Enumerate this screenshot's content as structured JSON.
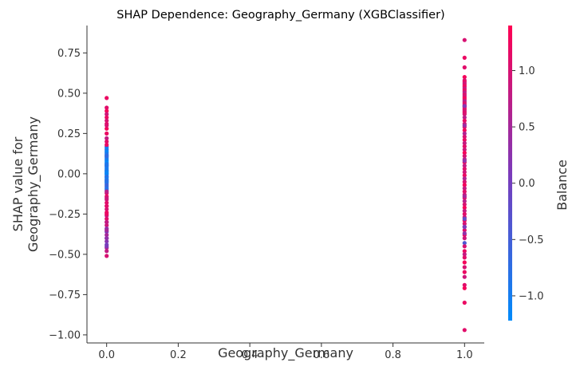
{
  "chart_data": {
    "type": "scatter",
    "title": "SHAP Dependence: Geography_Germany (XGBClassifier)",
    "xlabel": "Geography_Germany",
    "ylabel": "SHAP value for\nGeography_Germany",
    "xlim": [
      -0.055,
      1.055
    ],
    "ylim": [
      -1.05,
      0.92
    ],
    "xticks": [
      "0.0",
      "0.2",
      "0.4",
      "0.6",
      "0.8",
      "1.0"
    ],
    "yticks": [
      "−1.00",
      "−0.75",
      "−0.50",
      "−0.25",
      "0.00",
      "0.25",
      "0.50",
      "0.75"
    ],
    "colorbar": {
      "label": "Balance",
      "range": [
        -1.22,
        1.4
      ],
      "ticks": [
        "−1.0",
        "−0.5",
        "0.0",
        "0.5",
        "1.0"
      ],
      "low_color": "#008bfb",
      "mid_color": "#7c3aba",
      "high_color": "#ff0052"
    },
    "grid": false,
    "series": [
      {
        "x": [
          0,
          0,
          0,
          0,
          0,
          0,
          0,
          0,
          0,
          0,
          0,
          0,
          0,
          0,
          0,
          0,
          0,
          0,
          0,
          0,
          0,
          0,
          0,
          0,
          0,
          0,
          0,
          0,
          0,
          0,
          0,
          0,
          0,
          0,
          0,
          0,
          0,
          0,
          0,
          0,
          0,
          0,
          0,
          0,
          0,
          0,
          0,
          0,
          0,
          0,
          0,
          0,
          0,
          0,
          0,
          0,
          0,
          0,
          0,
          0,
          0,
          0,
          0,
          0,
          0,
          0,
          0,
          0,
          0,
          0,
          0,
          0,
          0,
          0,
          0,
          0,
          0,
          0
        ],
        "y": [
          0.47,
          0.41,
          0.39,
          0.37,
          0.35,
          0.33,
          0.31,
          0.28,
          0.25,
          0.22,
          0.2,
          0.17,
          0.15,
          0.13,
          0.11,
          0.1,
          0.08,
          0.06,
          0.05,
          0.04,
          0.02,
          0.01,
          0.0,
          -0.01,
          -0.02,
          -0.04,
          -0.05,
          -0.06,
          -0.08,
          -0.1,
          -0.12,
          -0.14,
          -0.16,
          -0.18,
          -0.2,
          -0.22,
          -0.24,
          -0.26,
          -0.28,
          -0.3,
          -0.32,
          -0.34,
          -0.36,
          -0.38,
          -0.4,
          -0.42,
          -0.44,
          -0.46,
          -0.48,
          -0.51,
          0.14,
          0.12,
          0.09,
          0.07,
          0.05,
          0.03,
          0.02,
          0.0,
          -0.02,
          -0.03,
          -0.05,
          -0.07,
          -0.09,
          0.16,
          0.11,
          0.06,
          0.01,
          -0.04,
          -0.11,
          -0.15,
          -0.2,
          -0.25,
          -0.3,
          -0.35,
          -0.4,
          -0.45,
          0.3,
          0.18
        ],
        "color": [
          1.2,
          1.1,
          1.3,
          0.9,
          1.2,
          1.0,
          1.1,
          1.3,
          1.2,
          0.8,
          1.1,
          0.4,
          -0.3,
          -0.8,
          -1.0,
          -0.9,
          -1.1,
          -0.7,
          -0.9,
          -1.0,
          -0.8,
          -1.1,
          -0.9,
          -1.0,
          -0.6,
          -0.9,
          -1.1,
          -0.8,
          -0.5,
          -0.7,
          1.0,
          1.2,
          0.9,
          1.1,
          1.3,
          1.0,
          1.2,
          0.8,
          1.1,
          0.6,
          0.9,
          0.3,
          0.1,
          0.5,
          0.4,
          0.2,
          0.0,
          0.6,
          0.8,
          1.0,
          -1.1,
          -0.9,
          -1.0,
          -1.2,
          -0.8,
          -1.0,
          -0.9,
          -1.1,
          -0.7,
          -1.0,
          -0.9,
          -0.6,
          -0.8,
          -1.0,
          -0.7,
          -0.9,
          -1.1,
          -0.8,
          0.7,
          0.9,
          1.1,
          1.2,
          0.8,
          0.5,
          0.3,
          0.1,
          1.0,
          1.2
        ]
      },
      {
        "x": [
          1,
          1,
          1,
          1,
          1,
          1,
          1,
          1,
          1,
          1,
          1,
          1,
          1,
          1,
          1,
          1,
          1,
          1,
          1,
          1,
          1,
          1,
          1,
          1,
          1,
          1,
          1,
          1,
          1,
          1,
          1,
          1,
          1,
          1,
          1,
          1,
          1,
          1,
          1,
          1,
          1,
          1,
          1,
          1,
          1,
          1,
          1,
          1,
          1,
          1,
          1,
          1,
          1,
          1,
          1,
          1,
          1,
          1,
          1,
          1,
          1,
          1,
          1,
          1,
          1,
          1,
          1,
          1,
          1,
          1,
          1,
          1,
          1,
          1,
          1,
          1,
          1,
          1,
          1,
          1,
          1,
          1,
          1,
          1
        ],
        "y": [
          0.83,
          0.72,
          0.66,
          0.6,
          0.58,
          0.57,
          0.56,
          0.55,
          0.54,
          0.53,
          0.52,
          0.51,
          0.5,
          0.49,
          0.48,
          0.47,
          0.46,
          0.45,
          0.44,
          0.43,
          0.42,
          0.41,
          0.4,
          0.39,
          0.38,
          0.37,
          0.35,
          0.33,
          0.31,
          0.29,
          0.27,
          0.25,
          0.23,
          0.21,
          0.19,
          0.17,
          0.15,
          0.13,
          0.11,
          0.09,
          0.07,
          0.05,
          0.03,
          0.01,
          -0.01,
          -0.03,
          -0.05,
          -0.07,
          -0.09,
          -0.11,
          -0.13,
          -0.15,
          -0.17,
          -0.19,
          -0.21,
          -0.23,
          -0.25,
          -0.27,
          -0.29,
          -0.31,
          -0.33,
          -0.35,
          -0.38,
          -0.4,
          -0.43,
          -0.45,
          -0.48,
          -0.5,
          -0.52,
          -0.55,
          -0.58,
          -0.61,
          -0.64,
          -0.69,
          -0.71,
          -0.8,
          -0.97,
          0.42,
          0.3,
          0.08,
          -0.14,
          -0.28,
          -0.33,
          -0.37
        ],
        "color": [
          1.0,
          1.2,
          1.1,
          1.3,
          1.0,
          1.2,
          0.9,
          1.1,
          1.3,
          0.8,
          1.2,
          1.0,
          0.7,
          1.1,
          0.9,
          1.3,
          1.2,
          0.6,
          1.0,
          1.1,
          0.8,
          1.2,
          1.3,
          0.9,
          1.1,
          1.0,
          0.7,
          1.2,
          0.9,
          1.1,
          1.3,
          0.6,
          1.0,
          1.2,
          0.8,
          1.1,
          0.9,
          1.3,
          1.0,
          0.7,
          1.2,
          0.8,
          1.1,
          0.9,
          1.2,
          0.6,
          1.0,
          1.3,
          0.8,
          1.1,
          0.9,
          1.2,
          0.7,
          1.0,
          1.3,
          0.8,
          1.1,
          0.9,
          1.2,
          1.0,
          0.6,
          1.1,
          1.3,
          0.9,
          -0.4,
          1.0,
          1.2,
          0.8,
          1.1,
          1.3,
          1.0,
          1.2,
          0.9,
          1.1,
          1.3,
          1.2,
          1.1,
          0.2,
          0.4,
          0.3,
          0.5,
          -0.2,
          0.1,
          0.3
        ]
      }
    ]
  }
}
